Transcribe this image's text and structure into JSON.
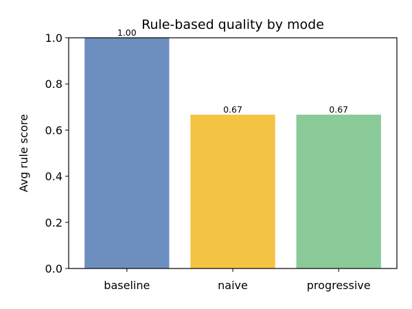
{
  "chart_data": {
    "type": "bar",
    "title": "Rule-based quality by mode",
    "xlabel": "",
    "ylabel": "Avg rule score",
    "categories": [
      "baseline",
      "naive",
      "progressive"
    ],
    "values": [
      1.0,
      0.6667,
      0.6667
    ],
    "data_labels": [
      "1.00",
      "0.67",
      "0.67"
    ],
    "colors": [
      "#6d8fc0",
      "#f5c344",
      "#8aca99"
    ],
    "ylim": [
      0,
      1.0
    ],
    "yticks": [
      0.0,
      0.2,
      0.4,
      0.6,
      0.8,
      1.0
    ],
    "ytick_labels": [
      "0.0",
      "0.2",
      "0.4",
      "0.6",
      "0.8",
      "1.0"
    ],
    "grid": false,
    "legend": "none"
  }
}
